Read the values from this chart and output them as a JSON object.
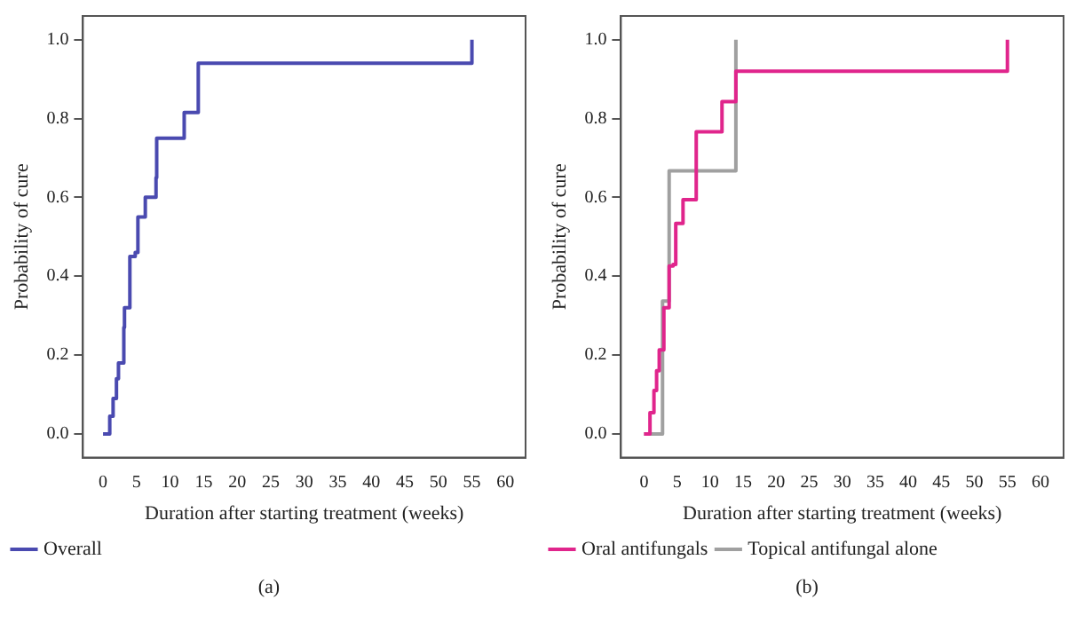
{
  "chart_data": [
    {
      "type": "step",
      "xlabel": "Duration after starting treatment (weeks)",
      "ylabel": "Probability of cure",
      "xlim": [
        -3,
        63
      ],
      "ylim": [
        -0.06,
        1.06
      ],
      "xticks": [
        0,
        5,
        10,
        15,
        20,
        25,
        30,
        35,
        40,
        45,
        50,
        55,
        60
      ],
      "yticks": [
        {
          "value": 0,
          "label": "0.0"
        },
        {
          "value": 0.2,
          "label": "0.2"
        },
        {
          "value": 0.4,
          "label": "0.4"
        },
        {
          "value": 0.6,
          "label": "0.6"
        },
        {
          "value": 0.8,
          "label": "0.8"
        },
        {
          "value": 1,
          "label": "1.0"
        }
      ],
      "grid": false,
      "legend": "bottom",
      "annotations": [
        "(a)"
      ],
      "series": [
        {
          "name": "Overall",
          "color": "#4a4ab0",
          "x": [
            0,
            1,
            1.5,
            2,
            2.3,
            3.1,
            3.2,
            4,
            4.8,
            5.2,
            6.3,
            7.9,
            8,
            12.1,
            14.2,
            55,
            55
          ],
          "values": [
            0,
            0.045,
            0.09,
            0.14,
            0.18,
            0.27,
            0.32,
            0.45,
            0.46,
            0.55,
            0.6,
            0.65,
            0.75,
            0.815,
            0.94,
            0.94,
            1.0
          ]
        }
      ]
    },
    {
      "type": "step",
      "xlabel": "Duration after starting treatment (weeks)",
      "ylabel": "Probability of cure",
      "xlim": [
        -3.5,
        63.5
      ],
      "ylim": [
        -0.06,
        1.06
      ],
      "xticks": [
        0,
        5,
        10,
        15,
        20,
        25,
        30,
        35,
        40,
        45,
        50,
        55,
        60
      ],
      "yticks": [
        {
          "value": 0,
          "label": "0.0"
        },
        {
          "value": 0.2,
          "label": "0.2"
        },
        {
          "value": 0.4,
          "label": "0.4"
        },
        {
          "value": 0.6,
          "label": "0.6"
        },
        {
          "value": 0.8,
          "label": "0.8"
        },
        {
          "value": 1,
          "label": "1.0"
        }
      ],
      "grid": false,
      "legend": "bottom",
      "annotations": [
        "(b)"
      ],
      "series": [
        {
          "name": "Oral antifungals",
          "color": "#e0258c",
          "x": [
            0,
            0.9,
            1.5,
            1.9,
            2.3,
            3.0,
            3.0,
            3.8,
            4.4,
            4.8,
            5.9,
            7.9,
            7.9,
            11.8,
            13.9,
            55,
            55
          ],
          "values": [
            0,
            0.054,
            0.11,
            0.16,
            0.213,
            0.26,
            0.32,
            0.426,
            0.43,
            0.534,
            0.594,
            0.65,
            0.766,
            0.843,
            0.92,
            0.92,
            1.0
          ]
        },
        {
          "name": "Topical antifungal alone",
          "color": "#a0a0a0",
          "x": [
            0,
            2.8,
            3.8,
            13.9
          ],
          "values": [
            0,
            0.337,
            0.667,
            1.0
          ]
        }
      ]
    }
  ]
}
